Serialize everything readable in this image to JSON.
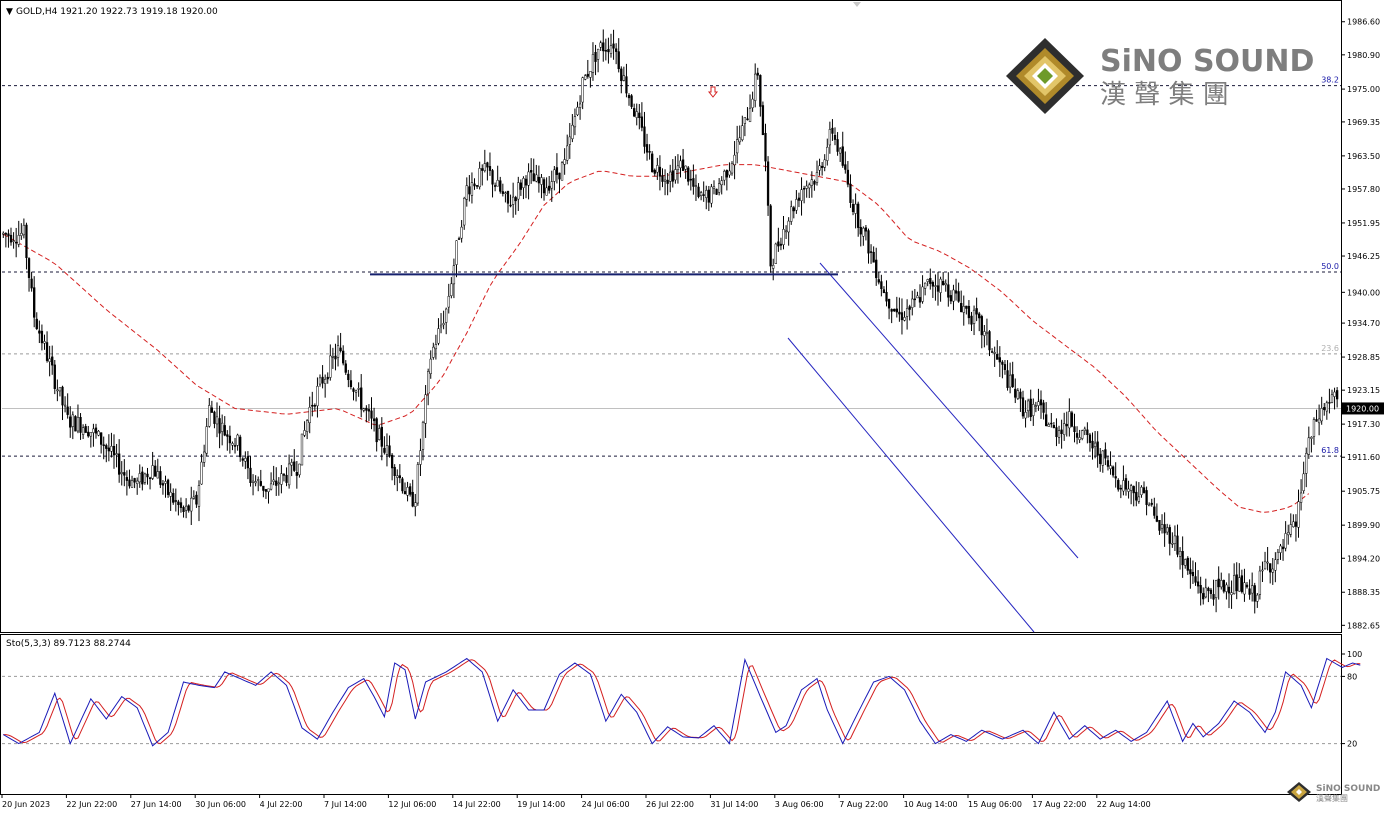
{
  "chart_data": [
    {
      "type": "candlestick",
      "symbol_header": "GOLD,H4  1921.20 1922.73 1919.18 1920.00",
      "price_ticks": [
        "1986.60",
        "1980.90",
        "1975.00",
        "1969.35",
        "1963.50",
        "1957.80",
        "1951.95",
        "1946.25",
        "1940.00",
        "1934.70",
        "1928.85",
        "1923.15",
        "1917.30",
        "1911.60",
        "1905.75",
        "1899.90",
        "1894.20",
        "1888.35",
        "1882.65"
      ],
      "ylim": [
        1881.5,
        1990
      ],
      "current_price": "1920.00",
      "x_labels": [
        "20 Jun 2023",
        "22 Jun 22:00",
        "27 Jun 14:00",
        "30 Jun 06:00",
        "4 Jul 22:00",
        "7 Jul 14:00",
        "12 Jul 06:00",
        "14 Jul 22:00",
        "19 Jul 14:00",
        "24 Jul 06:00",
        "26 Jul 22:00",
        "31 Jul 14:00",
        "3 Aug 06:00",
        "7 Aug 22:00",
        "10 Aug 14:00",
        "15 Aug 06:00",
        "17 Aug 22:00",
        "22 Aug 14:00"
      ],
      "fib_levels": [
        {
          "label": "38.2",
          "price": 1975.6,
          "color": "#1a1aa8"
        },
        {
          "label": "50.0",
          "price": 1943.5,
          "color": "#1a1aa8"
        },
        {
          "label": "23.6",
          "price": 1929.4,
          "color": "#b0b0b0"
        },
        {
          "label": "61.8",
          "price": 1911.8,
          "color": "#1a1aa8"
        }
      ],
      "support_line": {
        "price": 1943.1,
        "color": "#16216e"
      },
      "ma_color": "#d42020",
      "candle_color": "#000000",
      "channel_color": "#2626c0",
      "markers": [
        {
          "type": "down-arrow",
          "price": 1993.5
        },
        {
          "type": "down-arrow",
          "price": 1974.5
        }
      ],
      "anchors": [
        [
          0,
          1950
        ],
        [
          8,
          1950
        ],
        [
          12,
          1936
        ],
        [
          25,
          1918
        ],
        [
          32,
          1917
        ],
        [
          39,
          1914
        ],
        [
          48,
          1908
        ],
        [
          52,
          1907
        ],
        [
          58,
          1910
        ],
        [
          63,
          1906
        ],
        [
          70,
          1902
        ],
        [
          75,
          1904
        ],
        [
          80,
          1920
        ],
        [
          86,
          1916
        ],
        [
          91,
          1914
        ],
        [
          96,
          1908
        ],
        [
          103,
          1906
        ],
        [
          114,
          1910
        ],
        [
          119,
          1920
        ],
        [
          124,
          1925
        ],
        [
          130,
          1930
        ],
        [
          136,
          1924
        ],
        [
          140,
          1920
        ],
        [
          146,
          1915
        ],
        [
          152,
          1910
        ],
        [
          158,
          1904
        ],
        [
          160,
          1905
        ],
        [
          166,
          1929
        ],
        [
          172,
          1937
        ],
        [
          180,
          1958
        ],
        [
          188,
          1961
        ],
        [
          196,
          1955
        ],
        [
          203,
          1960
        ],
        [
          210,
          1958
        ],
        [
          218,
          1962
        ],
        [
          225,
          1976
        ],
        [
          231,
          1982
        ],
        [
          237,
          1983
        ],
        [
          240,
          1978
        ],
        [
          246,
          1970
        ],
        [
          252,
          1962
        ],
        [
          258,
          1960
        ],
        [
          264,
          1962
        ],
        [
          270,
          1956
        ],
        [
          276,
          1957
        ],
        [
          282,
          1962
        ],
        [
          288,
          1969
        ],
        [
          293,
          1978
        ],
        [
          296,
          1962
        ],
        [
          298,
          1945
        ],
        [
          304,
          1952
        ],
        [
          310,
          1958
        ],
        [
          316,
          1960
        ],
        [
          322,
          1968
        ],
        [
          326,
          1962
        ],
        [
          330,
          1955
        ],
        [
          336,
          1948
        ],
        [
          342,
          1940
        ],
        [
          348,
          1936
        ],
        [
          354,
          1938
        ],
        [
          360,
          1942
        ],
        [
          366,
          1941
        ],
        [
          372,
          1938
        ],
        [
          378,
          1935
        ],
        [
          384,
          1930
        ],
        [
          390,
          1925
        ],
        [
          396,
          1920
        ],
        [
          402,
          1920
        ],
        [
          408,
          1916
        ],
        [
          414,
          1918
        ],
        [
          420,
          1915
        ],
        [
          426,
          1912
        ],
        [
          432,
          1908
        ],
        [
          438,
          1906
        ],
        [
          444,
          1905
        ],
        [
          448,
          1900
        ],
        [
          454,
          1898
        ],
        [
          460,
          1892
        ],
        [
          466,
          1888
        ],
        [
          472,
          1889
        ],
        [
          478,
          1890
        ],
        [
          484,
          1888
        ],
        [
          486,
          1888
        ],
        [
          490,
          1893
        ],
        [
          495,
          1894
        ],
        [
          498,
          1897
        ],
        [
          502,
          1900
        ],
        [
          506,
          1912
        ],
        [
          510,
          1918
        ],
        [
          516,
          1922
        ],
        [
          518,
          1921
        ]
      ],
      "ma_points": [
        [
          0,
          1950
        ],
        [
          20,
          1945
        ],
        [
          40,
          1937
        ],
        [
          60,
          1930
        ],
        [
          75,
          1924
        ],
        [
          90,
          1920
        ],
        [
          110,
          1919
        ],
        [
          130,
          1920
        ],
        [
          145,
          1917
        ],
        [
          158,
          1919
        ],
        [
          170,
          1925
        ],
        [
          180,
          1933
        ],
        [
          190,
          1942
        ],
        [
          200,
          1948
        ],
        [
          210,
          1955
        ],
        [
          220,
          1959
        ],
        [
          232,
          1961
        ],
        [
          244,
          1960
        ],
        [
          256,
          1960
        ],
        [
          268,
          1961
        ],
        [
          280,
          1962
        ],
        [
          292,
          1962
        ],
        [
          304,
          1961
        ],
        [
          316,
          1960
        ],
        [
          328,
          1959
        ],
        [
          340,
          1955
        ],
        [
          352,
          1949
        ],
        [
          364,
          1947
        ],
        [
          376,
          1944
        ],
        [
          388,
          1940
        ],
        [
          400,
          1935
        ],
        [
          412,
          1931
        ],
        [
          424,
          1927
        ],
        [
          436,
          1922
        ],
        [
          448,
          1916
        ],
        [
          460,
          1911
        ],
        [
          472,
          1906
        ],
        [
          480,
          1903
        ],
        [
          490,
          1902
        ],
        [
          500,
          1903
        ],
        [
          509,
          1906
        ]
      ],
      "stoch_header": "Sto(5,3,3) 89.7123 88.2744",
      "stoch_ticks": [
        "100",
        "80",
        "20"
      ],
      "stoch_levels": [
        80,
        20
      ],
      "stoch_k_color": "#1a1ab8",
      "stoch_d_color": "#d42020",
      "stoch_k_final": 89.7123,
      "stoch_d_final": 88.2744,
      "stoch_k_points": [
        [
          0,
          28
        ],
        [
          6,
          20
        ],
        [
          14,
          30
        ],
        [
          20,
          65
        ],
        [
          26,
          20
        ],
        [
          34,
          60
        ],
        [
          40,
          42
        ],
        [
          46,
          62
        ],
        [
          52,
          52
        ],
        [
          58,
          18
        ],
        [
          64,
          30
        ],
        [
          70,
          75
        ],
        [
          76,
          72
        ],
        [
          82,
          70
        ],
        [
          86,
          84
        ],
        [
          92,
          78
        ],
        [
          98,
          72
        ],
        [
          104,
          84
        ],
        [
          110,
          72
        ],
        [
          116,
          34
        ],
        [
          122,
          24
        ],
        [
          128,
          48
        ],
        [
          134,
          70
        ],
        [
          140,
          78
        ],
        [
          144,
          62
        ],
        [
          148,
          44
        ],
        [
          152,
          92
        ],
        [
          156,
          86
        ],
        [
          160,
          42
        ],
        [
          164,
          75
        ],
        [
          172,
          84
        ],
        [
          180,
          96
        ],
        [
          186,
          84
        ],
        [
          192,
          40
        ],
        [
          198,
          68
        ],
        [
          204,
          50
        ],
        [
          210,
          50
        ],
        [
          216,
          82
        ],
        [
          222,
          92
        ],
        [
          228,
          82
        ],
        [
          234,
          40
        ],
        [
          240,
          64
        ],
        [
          246,
          48
        ],
        [
          252,
          20
        ],
        [
          258,
          35
        ],
        [
          264,
          26
        ],
        [
          270,
          25
        ],
        [
          276,
          36
        ],
        [
          282,
          20
        ],
        [
          288,
          95
        ],
        [
          294,
          62
        ],
        [
          300,
          30
        ],
        [
          304,
          36
        ],
        [
          310,
          68
        ],
        [
          316,
          78
        ],
        [
          320,
          50
        ],
        [
          326,
          20
        ],
        [
          332,
          48
        ],
        [
          338,
          75
        ],
        [
          344,
          80
        ],
        [
          350,
          68
        ],
        [
          356,
          40
        ],
        [
          362,
          20
        ],
        [
          368,
          28
        ],
        [
          374,
          22
        ],
        [
          380,
          32
        ],
        [
          388,
          24
        ],
        [
          396,
          32
        ],
        [
          402,
          20
        ],
        [
          408,
          48
        ],
        [
          414,
          24
        ],
        [
          420,
          36
        ],
        [
          426,
          24
        ],
        [
          432,
          32
        ],
        [
          438,
          22
        ],
        [
          444,
          30
        ],
        [
          452,
          58
        ],
        [
          458,
          22
        ],
        [
          462,
          38
        ],
        [
          466,
          26
        ],
        [
          472,
          38
        ],
        [
          478,
          58
        ],
        [
          484,
          48
        ],
        [
          490,
          30
        ],
        [
          494,
          48
        ],
        [
          498,
          84
        ],
        [
          504,
          72
        ],
        [
          508,
          52
        ],
        [
          514,
          96
        ],
        [
          520,
          88
        ],
        [
          524,
          92
        ],
        [
          527,
          90
        ]
      ]
    }
  ],
  "logo": {
    "en": "SiNO SOUND",
    "cn": "漢 聲 集 團",
    "small_en": "SiNO SOUND",
    "small_cn": "漢聲集團"
  }
}
